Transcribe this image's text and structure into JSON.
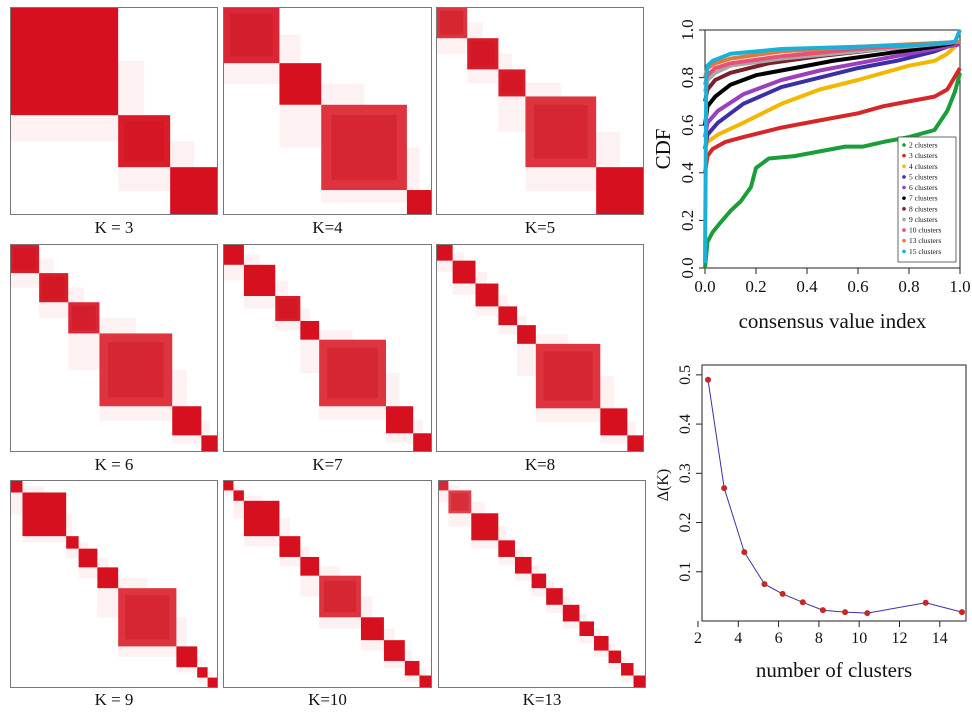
{
  "chart_data": [
    {
      "type": "heatmap",
      "label": "K = 3",
      "blocks": [
        {
          "from": 0.0,
          "to": 0.52,
          "level": 1.0
        },
        {
          "from": 0.52,
          "to": 0.77,
          "level": 0.95
        },
        {
          "from": 0.77,
          "to": 1.0,
          "level": 1.0
        }
      ]
    },
    {
      "type": "heatmap",
      "label": "K=4",
      "blocks": [
        {
          "from": 0.0,
          "to": 0.27,
          "level": 0.9
        },
        {
          "from": 0.27,
          "to": 0.47,
          "level": 1.0
        },
        {
          "from": 0.47,
          "to": 0.88,
          "level": 0.85
        },
        {
          "from": 0.88,
          "to": 1.0,
          "level": 1.0
        }
      ]
    },
    {
      "type": "heatmap",
      "label": "K=5",
      "blocks": [
        {
          "from": 0.0,
          "to": 0.15,
          "level": 0.85
        },
        {
          "from": 0.15,
          "to": 0.3,
          "level": 0.95
        },
        {
          "from": 0.3,
          "to": 0.43,
          "level": 0.95
        },
        {
          "from": 0.43,
          "to": 0.77,
          "level": 0.85
        },
        {
          "from": 0.77,
          "to": 1.0,
          "level": 1.0
        }
      ]
    },
    {
      "type": "heatmap",
      "label": "K = 6",
      "blocks": [
        {
          "from": 0.0,
          "to": 0.14,
          "level": 0.95
        },
        {
          "from": 0.14,
          "to": 0.28,
          "level": 0.95
        },
        {
          "from": 0.28,
          "to": 0.43,
          "level": 0.9
        },
        {
          "from": 0.43,
          "to": 0.78,
          "level": 0.85
        },
        {
          "from": 0.78,
          "to": 0.92,
          "level": 1.0
        },
        {
          "from": 0.92,
          "to": 1.0,
          "level": 1.0
        }
      ]
    },
    {
      "type": "heatmap",
      "label": "K=7",
      "blocks": [
        {
          "from": 0.0,
          "to": 0.1,
          "level": 1.0
        },
        {
          "from": 0.1,
          "to": 0.25,
          "level": 1.0
        },
        {
          "from": 0.25,
          "to": 0.37,
          "level": 0.95
        },
        {
          "from": 0.37,
          "to": 0.46,
          "level": 1.0
        },
        {
          "from": 0.46,
          "to": 0.78,
          "level": 0.85
        },
        {
          "from": 0.78,
          "to": 0.91,
          "level": 1.0
        },
        {
          "from": 0.91,
          "to": 1.0,
          "level": 1.0
        }
      ]
    },
    {
      "type": "heatmap",
      "label": "K=8",
      "blocks": [
        {
          "from": 0.0,
          "to": 0.08,
          "level": 1.0
        },
        {
          "from": 0.08,
          "to": 0.19,
          "level": 1.0
        },
        {
          "from": 0.19,
          "to": 0.3,
          "level": 1.0
        },
        {
          "from": 0.3,
          "to": 0.39,
          "level": 1.0
        },
        {
          "from": 0.39,
          "to": 0.48,
          "level": 1.0
        },
        {
          "from": 0.48,
          "to": 0.79,
          "level": 0.85
        },
        {
          "from": 0.79,
          "to": 0.92,
          "level": 1.0
        },
        {
          "from": 0.92,
          "to": 1.0,
          "level": 1.0
        }
      ]
    },
    {
      "type": "heatmap",
      "label": "K = 9",
      "blocks": [
        {
          "from": 0.0,
          "to": 0.06,
          "level": 1.0
        },
        {
          "from": 0.06,
          "to": 0.27,
          "level": 1.0
        },
        {
          "from": 0.27,
          "to": 0.33,
          "level": 1.0
        },
        {
          "from": 0.33,
          "to": 0.42,
          "level": 1.0
        },
        {
          "from": 0.42,
          "to": 0.52,
          "level": 1.0
        },
        {
          "from": 0.52,
          "to": 0.8,
          "level": 0.85
        },
        {
          "from": 0.8,
          "to": 0.9,
          "level": 1.0
        },
        {
          "from": 0.9,
          "to": 0.95,
          "level": 1.0
        },
        {
          "from": 0.95,
          "to": 1.0,
          "level": 1.0
        }
      ]
    },
    {
      "type": "heatmap",
      "label": "K=10",
      "blocks": [
        {
          "from": 0.0,
          "to": 0.05,
          "level": 1.0
        },
        {
          "from": 0.05,
          "to": 0.1,
          "level": 1.0
        },
        {
          "from": 0.1,
          "to": 0.27,
          "level": 1.0
        },
        {
          "from": 0.27,
          "to": 0.37,
          "level": 1.0
        },
        {
          "from": 0.37,
          "to": 0.46,
          "level": 1.0
        },
        {
          "from": 0.46,
          "to": 0.66,
          "level": 0.85
        },
        {
          "from": 0.66,
          "to": 0.77,
          "level": 1.0
        },
        {
          "from": 0.77,
          "to": 0.87,
          "level": 1.0
        },
        {
          "from": 0.87,
          "to": 0.94,
          "level": 1.0
        },
        {
          "from": 0.94,
          "to": 1.0,
          "level": 1.0
        }
      ]
    },
    {
      "type": "heatmap",
      "label": "K=13",
      "blocks": [
        {
          "from": 0.0,
          "to": 0.05,
          "level": 0.9
        },
        {
          "from": 0.05,
          "to": 0.16,
          "level": 0.8
        },
        {
          "from": 0.16,
          "to": 0.29,
          "level": 1.0
        },
        {
          "from": 0.29,
          "to": 0.37,
          "level": 1.0
        },
        {
          "from": 0.37,
          "to": 0.45,
          "level": 1.0
        },
        {
          "from": 0.45,
          "to": 0.52,
          "level": 1.0
        },
        {
          "from": 0.52,
          "to": 0.6,
          "level": 1.0
        },
        {
          "from": 0.6,
          "to": 0.68,
          "level": 1.0
        },
        {
          "from": 0.68,
          "to": 0.75,
          "level": 1.0
        },
        {
          "from": 0.75,
          "to": 0.82,
          "level": 1.0
        },
        {
          "from": 0.82,
          "to": 0.88,
          "level": 1.0
        },
        {
          "from": 0.88,
          "to": 0.94,
          "level": 1.0
        },
        {
          "from": 0.94,
          "to": 1.0,
          "level": 1.0
        }
      ]
    },
    {
      "type": "line",
      "xlabel": "consensus value index",
      "ylabel": "CDF",
      "xlim": [
        0,
        1
      ],
      "ylim": [
        0,
        1
      ],
      "xticks": [
        "0.0",
        "0.2",
        "0.4",
        "0.6",
        "0.8",
        "1.0"
      ],
      "yticks": [
        "0.0",
        "0.2",
        "0.4",
        "0.6",
        "0.8",
        "1.0"
      ],
      "legend_position": "bottom-right",
      "series": [
        {
          "name": "2 clusters",
          "color": "#1b9e3a",
          "x": [
            0,
            0.01,
            0.03,
            0.06,
            0.1,
            0.14,
            0.18,
            0.2,
            0.25,
            0.35,
            0.45,
            0.55,
            0.62,
            0.7,
            0.8,
            0.9,
            0.95,
            0.98,
            1.0
          ],
          "y": [
            0.0,
            0.11,
            0.15,
            0.19,
            0.24,
            0.28,
            0.34,
            0.42,
            0.46,
            0.47,
            0.49,
            0.51,
            0.51,
            0.53,
            0.55,
            0.58,
            0.66,
            0.74,
            0.82
          ]
        },
        {
          "name": "3 clusters",
          "color": "#d62728",
          "x": [
            0,
            0.01,
            0.03,
            0.08,
            0.15,
            0.3,
            0.45,
            0.6,
            0.7,
            0.8,
            0.9,
            0.95,
            1.0
          ],
          "y": [
            0.4,
            0.47,
            0.5,
            0.53,
            0.55,
            0.59,
            0.62,
            0.65,
            0.68,
            0.7,
            0.72,
            0.75,
            0.84
          ]
        },
        {
          "name": "4 clusters",
          "color": "#f2b800",
          "x": [
            0,
            0.01,
            0.05,
            0.15,
            0.3,
            0.45,
            0.6,
            0.7,
            0.8,
            0.9,
            0.95,
            1.0
          ],
          "y": [
            0.5,
            0.53,
            0.56,
            0.61,
            0.69,
            0.75,
            0.79,
            0.82,
            0.85,
            0.87,
            0.9,
            0.95
          ]
        },
        {
          "name": "5 clusters",
          "color": "#3b2fa8",
          "x": [
            0,
            0.01,
            0.05,
            0.15,
            0.3,
            0.45,
            0.6,
            0.75,
            0.9,
            1.0
          ],
          "y": [
            0.5,
            0.56,
            0.61,
            0.69,
            0.76,
            0.8,
            0.84,
            0.87,
            0.91,
            0.95
          ]
        },
        {
          "name": "6 clusters",
          "color": "#9b3fbf",
          "x": [
            0,
            0.01,
            0.05,
            0.15,
            0.3,
            0.45,
            0.6,
            0.8,
            1.0
          ],
          "y": [
            0.55,
            0.61,
            0.66,
            0.73,
            0.79,
            0.83,
            0.86,
            0.9,
            0.94
          ]
        },
        {
          "name": "7 clusters",
          "color": "#000000",
          "x": [
            0,
            0.01,
            0.04,
            0.1,
            0.2,
            0.35,
            0.5,
            0.7,
            0.9,
            1.0
          ],
          "y": [
            0.6,
            0.68,
            0.72,
            0.77,
            0.81,
            0.84,
            0.87,
            0.9,
            0.93,
            0.95
          ]
        },
        {
          "name": "8 clusters",
          "color": "#7a1f2b",
          "x": [
            0,
            0.01,
            0.04,
            0.1,
            0.25,
            0.45,
            0.7,
            1.0
          ],
          "y": [
            0.7,
            0.75,
            0.79,
            0.82,
            0.86,
            0.89,
            0.92,
            0.95
          ]
        },
        {
          "name": "9 clusters",
          "color": "#a8a8a8",
          "x": [
            0,
            0.01,
            0.04,
            0.1,
            0.3,
            0.6,
            1.0
          ],
          "y": [
            0.74,
            0.79,
            0.82,
            0.85,
            0.88,
            0.91,
            0.95
          ]
        },
        {
          "name": "10 clusters",
          "color": "#e8507a",
          "x": [
            0,
            0.01,
            0.04,
            0.1,
            0.3,
            0.6,
            1.0
          ],
          "y": [
            0.77,
            0.81,
            0.84,
            0.86,
            0.89,
            0.92,
            0.95
          ]
        },
        {
          "name": "13 clusters",
          "color": "#e07a3a",
          "x": [
            0,
            0.01,
            0.04,
            0.1,
            0.3,
            0.6,
            1.0
          ],
          "y": [
            0.8,
            0.84,
            0.86,
            0.88,
            0.91,
            0.93,
            0.95
          ]
        },
        {
          "name": "15 clusters",
          "color": "#1ab0d8",
          "x": [
            0,
            0.005,
            0.01,
            0.03,
            0.1,
            0.3,
            0.6,
            0.9,
            0.98,
            1.0
          ],
          "y": [
            0.02,
            0.8,
            0.85,
            0.87,
            0.9,
            0.92,
            0.93,
            0.94,
            0.95,
            1.0
          ]
        }
      ]
    },
    {
      "type": "line",
      "xlabel": "number of clusters",
      "ylabel": "Δ(K)",
      "xlim": [
        2.2,
        15.3
      ],
      "ylim": [
        0.0,
        0.52
      ],
      "xticks": [
        2,
        4,
        6,
        8,
        10,
        12,
        14
      ],
      "yticks": [
        0.1,
        0.2,
        0.3,
        0.4,
        0.5
      ],
      "series": [
        {
          "color": "#3b2fa8",
          "marker_color": "#c62828",
          "x": [
            2.5,
            3.3,
            4.3,
            5.3,
            6.2,
            7.2,
            8.2,
            9.3,
            10.4,
            13.3,
            15.1
          ],
          "y": [
            0.49,
            0.27,
            0.14,
            0.075,
            0.055,
            0.038,
            0.022,
            0.018,
            0.016,
            0.037,
            0.018
          ]
        }
      ]
    }
  ]
}
